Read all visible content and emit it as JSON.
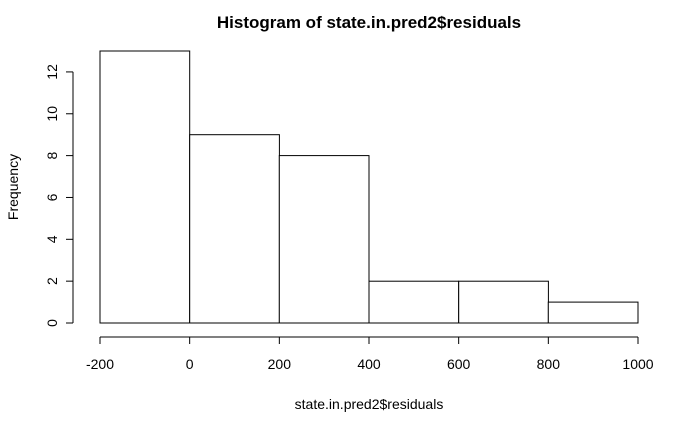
{
  "chart_data": {
    "type": "bar",
    "title": "Histogram of state.in.pred2$residuals",
    "xlabel": "state.in.pred2$residuals",
    "ylabel": "Frequency",
    "bins": [
      {
        "start": -200,
        "end": 0,
        "value": 13
      },
      {
        "start": 0,
        "end": 200,
        "value": 9
      },
      {
        "start": 200,
        "end": 400,
        "value": 8
      },
      {
        "start": 400,
        "end": 600,
        "value": 2
      },
      {
        "start": 600,
        "end": 800,
        "value": 2
      },
      {
        "start": 800,
        "end": 1000,
        "value": 1
      }
    ],
    "xlim": [
      -200,
      1000
    ],
    "ylim": [
      0,
      13
    ],
    "xticks": [
      -200,
      0,
      200,
      400,
      600,
      800,
      1000
    ],
    "yticks": [
      0,
      2,
      4,
      6,
      8,
      10,
      12
    ],
    "grid": false,
    "colors": {
      "bar_fill": "#ffffff",
      "bar_stroke": "#000000"
    }
  }
}
